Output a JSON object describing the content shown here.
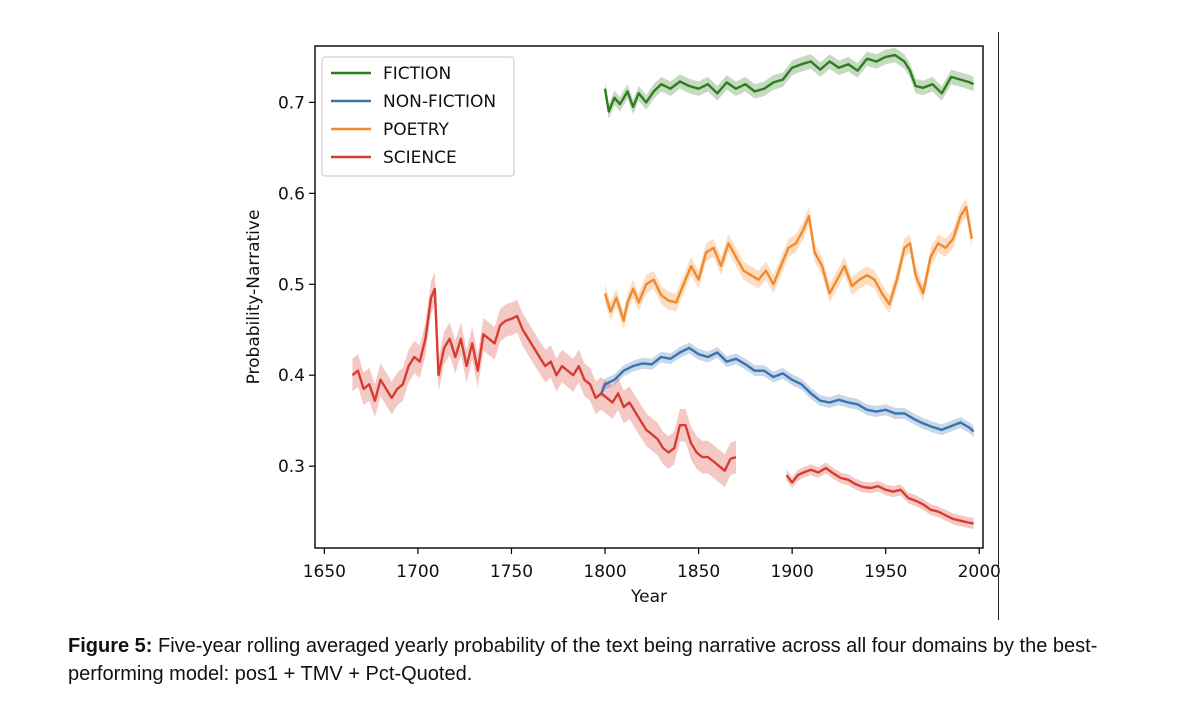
{
  "chart_data": {
    "type": "line",
    "xlabel": "Year",
    "ylabel": "Probability-Narrative",
    "xlim": [
      1645,
      2002
    ],
    "ylim": [
      0.21,
      0.762
    ],
    "xticks": [
      "1650",
      "1700",
      "1750",
      "1800",
      "1850",
      "1900",
      "1950",
      "2000"
    ],
    "yticks": [
      "0.3",
      "0.4",
      "0.5",
      "0.6",
      "0.7"
    ],
    "grid": false,
    "legend_position": "top-left",
    "shaded_band": "confidence interval",
    "series": [
      {
        "name": "FICTION",
        "color": "#2e7d1f",
        "band": 0.008,
        "x": [
          1800,
          1802,
          1805,
          1808,
          1812,
          1815,
          1818,
          1822,
          1826,
          1830,
          1835,
          1840,
          1845,
          1850,
          1855,
          1860,
          1865,
          1870,
          1875,
          1880,
          1885,
          1890,
          1895,
          1900,
          1905,
          1910,
          1915,
          1920,
          1925,
          1930,
          1935,
          1940,
          1945,
          1950,
          1955,
          1960,
          1963,
          1966,
          1970,
          1975,
          1980,
          1985,
          1990,
          1995,
          1997
        ],
        "values": [
          0.715,
          0.69,
          0.705,
          0.698,
          0.712,
          0.695,
          0.71,
          0.7,
          0.712,
          0.72,
          0.715,
          0.723,
          0.718,
          0.715,
          0.72,
          0.71,
          0.722,
          0.715,
          0.72,
          0.712,
          0.715,
          0.722,
          0.725,
          0.738,
          0.742,
          0.745,
          0.736,
          0.745,
          0.738,
          0.742,
          0.735,
          0.748,
          0.745,
          0.75,
          0.752,
          0.745,
          0.735,
          0.718,
          0.716,
          0.72,
          0.71,
          0.728,
          0.725,
          0.722,
          0.72
        ]
      },
      {
        "name": "NON-FICTION",
        "color": "#3a72b0",
        "band": 0.006,
        "x": [
          1798,
          1800,
          1805,
          1810,
          1815,
          1820,
          1825,
          1830,
          1835,
          1840,
          1845,
          1850,
          1855,
          1860,
          1865,
          1870,
          1875,
          1880,
          1885,
          1890,
          1895,
          1900,
          1905,
          1910,
          1915,
          1920,
          1925,
          1930,
          1935,
          1940,
          1945,
          1950,
          1955,
          1960,
          1965,
          1970,
          1975,
          1980,
          1985,
          1990,
          1995,
          1997
        ],
        "values": [
          0.38,
          0.39,
          0.395,
          0.405,
          0.41,
          0.413,
          0.412,
          0.42,
          0.418,
          0.425,
          0.43,
          0.423,
          0.42,
          0.425,
          0.415,
          0.418,
          0.412,
          0.405,
          0.405,
          0.398,
          0.402,
          0.395,
          0.39,
          0.38,
          0.372,
          0.37,
          0.373,
          0.37,
          0.368,
          0.362,
          0.36,
          0.362,
          0.358,
          0.358,
          0.352,
          0.347,
          0.343,
          0.34,
          0.344,
          0.348,
          0.342,
          0.338
        ]
      },
      {
        "name": "POETRY",
        "color": "#f28a2c",
        "band": 0.01,
        "x": [
          1800,
          1803,
          1806,
          1810,
          1812,
          1815,
          1818,
          1822,
          1826,
          1830,
          1834,
          1838,
          1842,
          1846,
          1850,
          1854,
          1858,
          1862,
          1866,
          1870,
          1874,
          1878,
          1882,
          1886,
          1890,
          1894,
          1898,
          1902,
          1906,
          1909,
          1912,
          1916,
          1920,
          1924,
          1928,
          1932,
          1936,
          1940,
          1944,
          1948,
          1952,
          1956,
          1960,
          1963,
          1966,
          1970,
          1974,
          1978,
          1982,
          1986,
          1990,
          1993,
          1996
        ],
        "values": [
          0.49,
          0.47,
          0.485,
          0.46,
          0.48,
          0.495,
          0.48,
          0.5,
          0.505,
          0.488,
          0.482,
          0.48,
          0.5,
          0.52,
          0.505,
          0.535,
          0.54,
          0.52,
          0.545,
          0.53,
          0.515,
          0.51,
          0.505,
          0.515,
          0.5,
          0.52,
          0.54,
          0.545,
          0.56,
          0.575,
          0.535,
          0.52,
          0.49,
          0.505,
          0.52,
          0.498,
          0.505,
          0.51,
          0.505,
          0.49,
          0.478,
          0.505,
          0.54,
          0.545,
          0.51,
          0.49,
          0.53,
          0.545,
          0.54,
          0.55,
          0.575,
          0.585,
          0.55
        ]
      },
      {
        "name": "SCIENCE",
        "color": "#d83c30",
        "band": 0.018,
        "x": [
          1665,
          1668,
          1671,
          1674,
          1677,
          1680,
          1683,
          1686,
          1689,
          1692,
          1695,
          1698,
          1701,
          1704,
          1707,
          1709,
          1711,
          1714,
          1717,
          1720,
          1723,
          1726,
          1729,
          1732,
          1735,
          1738,
          1741,
          1744,
          1747,
          1750,
          1753,
          1756,
          1759,
          1762,
          1765,
          1768,
          1771,
          1774,
          1777,
          1780,
          1783,
          1786,
          1789,
          1792,
          1795,
          1798,
          1801,
          1804,
          1807,
          1810,
          1813,
          1816,
          1819,
          1822,
          1825,
          1828,
          1831,
          1834,
          1837,
          1840,
          1843,
          1846,
          1849,
          1852,
          1855,
          1858,
          1861,
          1864,
          1867,
          1870
        ],
        "values": [
          0.4,
          0.405,
          0.385,
          0.39,
          0.372,
          0.395,
          0.385,
          0.375,
          0.385,
          0.39,
          0.41,
          0.42,
          0.415,
          0.44,
          0.485,
          0.495,
          0.4,
          0.43,
          0.44,
          0.42,
          0.44,
          0.41,
          0.435,
          0.405,
          0.445,
          0.44,
          0.435,
          0.455,
          0.46,
          0.462,
          0.465,
          0.45,
          0.44,
          0.43,
          0.42,
          0.41,
          0.415,
          0.4,
          0.41,
          0.405,
          0.4,
          0.41,
          0.395,
          0.39,
          0.375,
          0.38,
          0.375,
          0.37,
          0.38,
          0.365,
          0.37,
          0.36,
          0.35,
          0.34,
          0.335,
          0.33,
          0.32,
          0.315,
          0.32,
          0.345,
          0.345,
          0.325,
          0.315,
          0.31,
          0.31,
          0.305,
          0.3,
          0.295,
          0.308,
          0.31
        ]
      },
      {
        "name": "SCIENCE",
        "color": "#d83c30",
        "band": 0.006,
        "in_legend": false,
        "x": [
          1897,
          1900,
          1903,
          1906,
          1910,
          1914,
          1918,
          1922,
          1926,
          1930,
          1934,
          1938,
          1942,
          1946,
          1950,
          1954,
          1958,
          1962,
          1966,
          1970,
          1974,
          1978,
          1982,
          1986,
          1990,
          1994,
          1997
        ],
        "values": [
          0.29,
          0.282,
          0.29,
          0.293,
          0.296,
          0.293,
          0.298,
          0.292,
          0.287,
          0.285,
          0.28,
          0.277,
          0.276,
          0.278,
          0.274,
          0.272,
          0.274,
          0.265,
          0.262,
          0.258,
          0.252,
          0.25,
          0.246,
          0.242,
          0.24,
          0.238,
          0.237
        ]
      }
    ]
  },
  "caption": {
    "label": "Figure 5:",
    "text": "Five-year rolling averaged yearly probability of the text being narrative across all four domains by the best-performing model: pos1 + TMV + Pct-Quoted."
  }
}
